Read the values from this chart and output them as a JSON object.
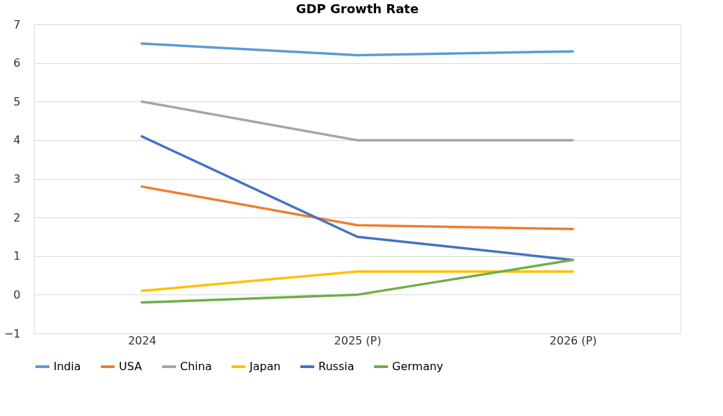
{
  "chart_data": {
    "type": "line",
    "title": "GDP Growth Rate",
    "categories": [
      "2024",
      "2025 (P)",
      "2026 (P)"
    ],
    "series": [
      {
        "name": "India",
        "color": "#5b9bd5",
        "values": [
          6.5,
          6.2,
          6.3
        ]
      },
      {
        "name": "USA",
        "color": "#ed7d31",
        "values": [
          2.8,
          1.8,
          1.7
        ]
      },
      {
        "name": "China",
        "color": "#a5a5a5",
        "values": [
          5,
          4,
          4
        ]
      },
      {
        "name": "Japan",
        "color": "#ffc000",
        "values": [
          0.1,
          0.6,
          0.6
        ]
      },
      {
        "name": "Russia",
        "color": "#4472c4",
        "values": [
          4.1,
          1.5,
          0.9
        ]
      },
      {
        "name": "Germany",
        "color": "#70ad47",
        "values": [
          -0.2,
          0,
          0.9
        ]
      }
    ],
    "ylim": [
      -1,
      7
    ],
    "yticks": [
      -1,
      0,
      1,
      2,
      3,
      4,
      5,
      6,
      7
    ],
    "grid": "y",
    "legend": "bottom",
    "marker": "none",
    "line_style": "solid"
  }
}
